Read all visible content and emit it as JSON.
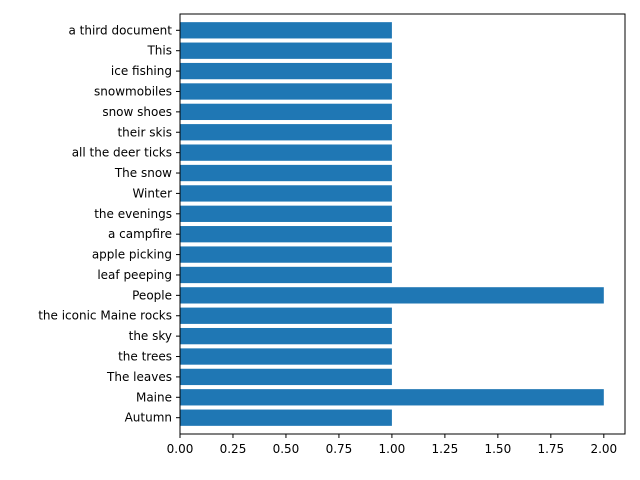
{
  "chart_data": {
    "type": "bar",
    "orientation": "horizontal",
    "categories": [
      "Autumn",
      "Maine",
      "The leaves",
      "the trees",
      "the sky",
      "the iconic Maine rocks",
      "People",
      "leaf peeping",
      "apple picking",
      "a campfire",
      "the evenings",
      "Winter",
      "The snow",
      "all the deer ticks",
      "their skis",
      "snow shoes",
      "snowmobiles",
      "ice fishing",
      "This",
      "a third document"
    ],
    "values": [
      1,
      2,
      1,
      1,
      1,
      1,
      2,
      1,
      1,
      1,
      1,
      1,
      1,
      1,
      1,
      1,
      1,
      1,
      1,
      1
    ],
    "xlim": [
      0,
      2.1
    ],
    "xticks": [
      "0.00",
      "0.25",
      "0.50",
      "0.75",
      "1.00",
      "1.25",
      "1.50",
      "1.75",
      "2.00"
    ],
    "title": "",
    "xlabel": "",
    "ylabel": "",
    "grid": false,
    "bar_color": "#1f77b4"
  }
}
